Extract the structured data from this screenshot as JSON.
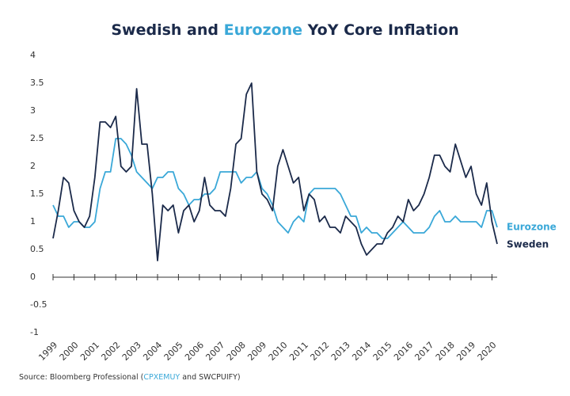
{
  "chart_data": {
    "type": "line",
    "title_parts": [
      "Swedish and ",
      "Eurozone",
      " YoY Core Inflation"
    ],
    "source_parts": [
      "Source: Bloomberg Professional (",
      "CPXEMUY",
      " and SWCPUIFY)"
    ],
    "x": [
      1999,
      1999.25,
      1999.5,
      1999.75,
      2000,
      2000.25,
      2000.5,
      2000.75,
      2001,
      2001.25,
      2001.5,
      2001.75,
      2002,
      2002.25,
      2002.5,
      2002.75,
      2003,
      2003.25,
      2003.5,
      2003.75,
      2004,
      2004.25,
      2004.5,
      2004.75,
      2005,
      2005.25,
      2005.5,
      2005.75,
      2006,
      2006.25,
      2006.5,
      2006.75,
      2007,
      2007.25,
      2007.5,
      2007.75,
      2008,
      2008.25,
      2008.5,
      2008.75,
      2009,
      2009.25,
      2009.5,
      2009.75,
      2010,
      2010.25,
      2010.5,
      2010.75,
      2011,
      2011.25,
      2011.5,
      2011.75,
      2012,
      2012.25,
      2012.5,
      2012.75,
      2013,
      2013.25,
      2013.5,
      2013.75,
      2014,
      2014.25,
      2014.5,
      2014.75,
      2015,
      2015.25,
      2015.5,
      2015.75,
      2016,
      2016.25,
      2016.5,
      2016.75,
      2017,
      2017.25,
      2017.5,
      2017.75,
      2018,
      2018.25,
      2018.5,
      2018.75,
      2019,
      2019.25,
      2019.5,
      2019.75,
      2020,
      2020.25
    ],
    "series": [
      {
        "name": "Eurozone",
        "color": "#3aa8d8",
        "values": [
          1.3,
          1.1,
          1.1,
          0.9,
          1.0,
          1.0,
          0.9,
          0.9,
          1.0,
          1.6,
          1.9,
          1.9,
          2.5,
          2.5,
          2.4,
          2.2,
          1.9,
          1.8,
          1.7,
          1.6,
          1.8,
          1.8,
          1.9,
          1.9,
          1.6,
          1.5,
          1.3,
          1.4,
          1.4,
          1.5,
          1.5,
          1.6,
          1.9,
          1.9,
          1.9,
          1.9,
          1.7,
          1.8,
          1.8,
          1.9,
          1.6,
          1.5,
          1.3,
          1.0,
          0.9,
          0.8,
          1.0,
          1.1,
          1.0,
          1.5,
          1.6,
          1.6,
          1.6,
          1.6,
          1.6,
          1.5,
          1.3,
          1.1,
          1.1,
          0.8,
          0.9,
          0.8,
          0.8,
          0.7,
          0.7,
          0.8,
          0.9,
          1.0,
          0.9,
          0.8,
          0.8,
          0.8,
          0.9,
          1.1,
          1.2,
          1.0,
          1.0,
          1.1,
          1.0,
          1.0,
          1.0,
          1.0,
          0.9,
          1.2,
          1.2,
          0.9
        ]
      },
      {
        "name": "Sweden",
        "color": "#1b2a4a",
        "values": [
          0.7,
          1.2,
          1.8,
          1.7,
          1.2,
          1.0,
          0.9,
          1.1,
          1.8,
          2.8,
          2.8,
          2.7,
          2.9,
          2.0,
          1.9,
          2.0,
          3.4,
          2.4,
          2.4,
          1.5,
          0.3,
          1.3,
          1.2,
          1.3,
          0.8,
          1.2,
          1.3,
          1.0,
          1.2,
          1.8,
          1.3,
          1.2,
          1.2,
          1.1,
          1.6,
          2.4,
          2.5,
          3.3,
          3.5,
          1.9,
          1.5,
          1.4,
          1.2,
          2.0,
          2.3,
          2.0,
          1.7,
          1.8,
          1.2,
          1.5,
          1.4,
          1.0,
          1.1,
          0.9,
          0.9,
          0.8,
          1.1,
          1.0,
          0.9,
          0.6,
          0.4,
          0.5,
          0.6,
          0.6,
          0.8,
          0.9,
          1.1,
          1.0,
          1.4,
          1.2,
          1.3,
          1.5,
          1.8,
          2.2,
          2.2,
          2.0,
          1.9,
          2.4,
          2.1,
          1.8,
          2.0,
          1.5,
          1.3,
          1.7,
          1.0,
          0.6
        ]
      }
    ],
    "xlim": [
      1999,
      2020.25
    ],
    "xticks": [
      1999,
      2000,
      2001,
      2002,
      2003,
      2004,
      2005,
      2006,
      2007,
      2008,
      2009,
      2010,
      2011,
      2012,
      2013,
      2014,
      2015,
      2016,
      2017,
      2018,
      2019,
      2020
    ],
    "ylim": [
      -1,
      4
    ],
    "yticks": [
      -1,
      -0.5,
      0,
      0.5,
      1,
      1.5,
      2,
      2.5,
      3,
      3.5,
      4
    ]
  }
}
